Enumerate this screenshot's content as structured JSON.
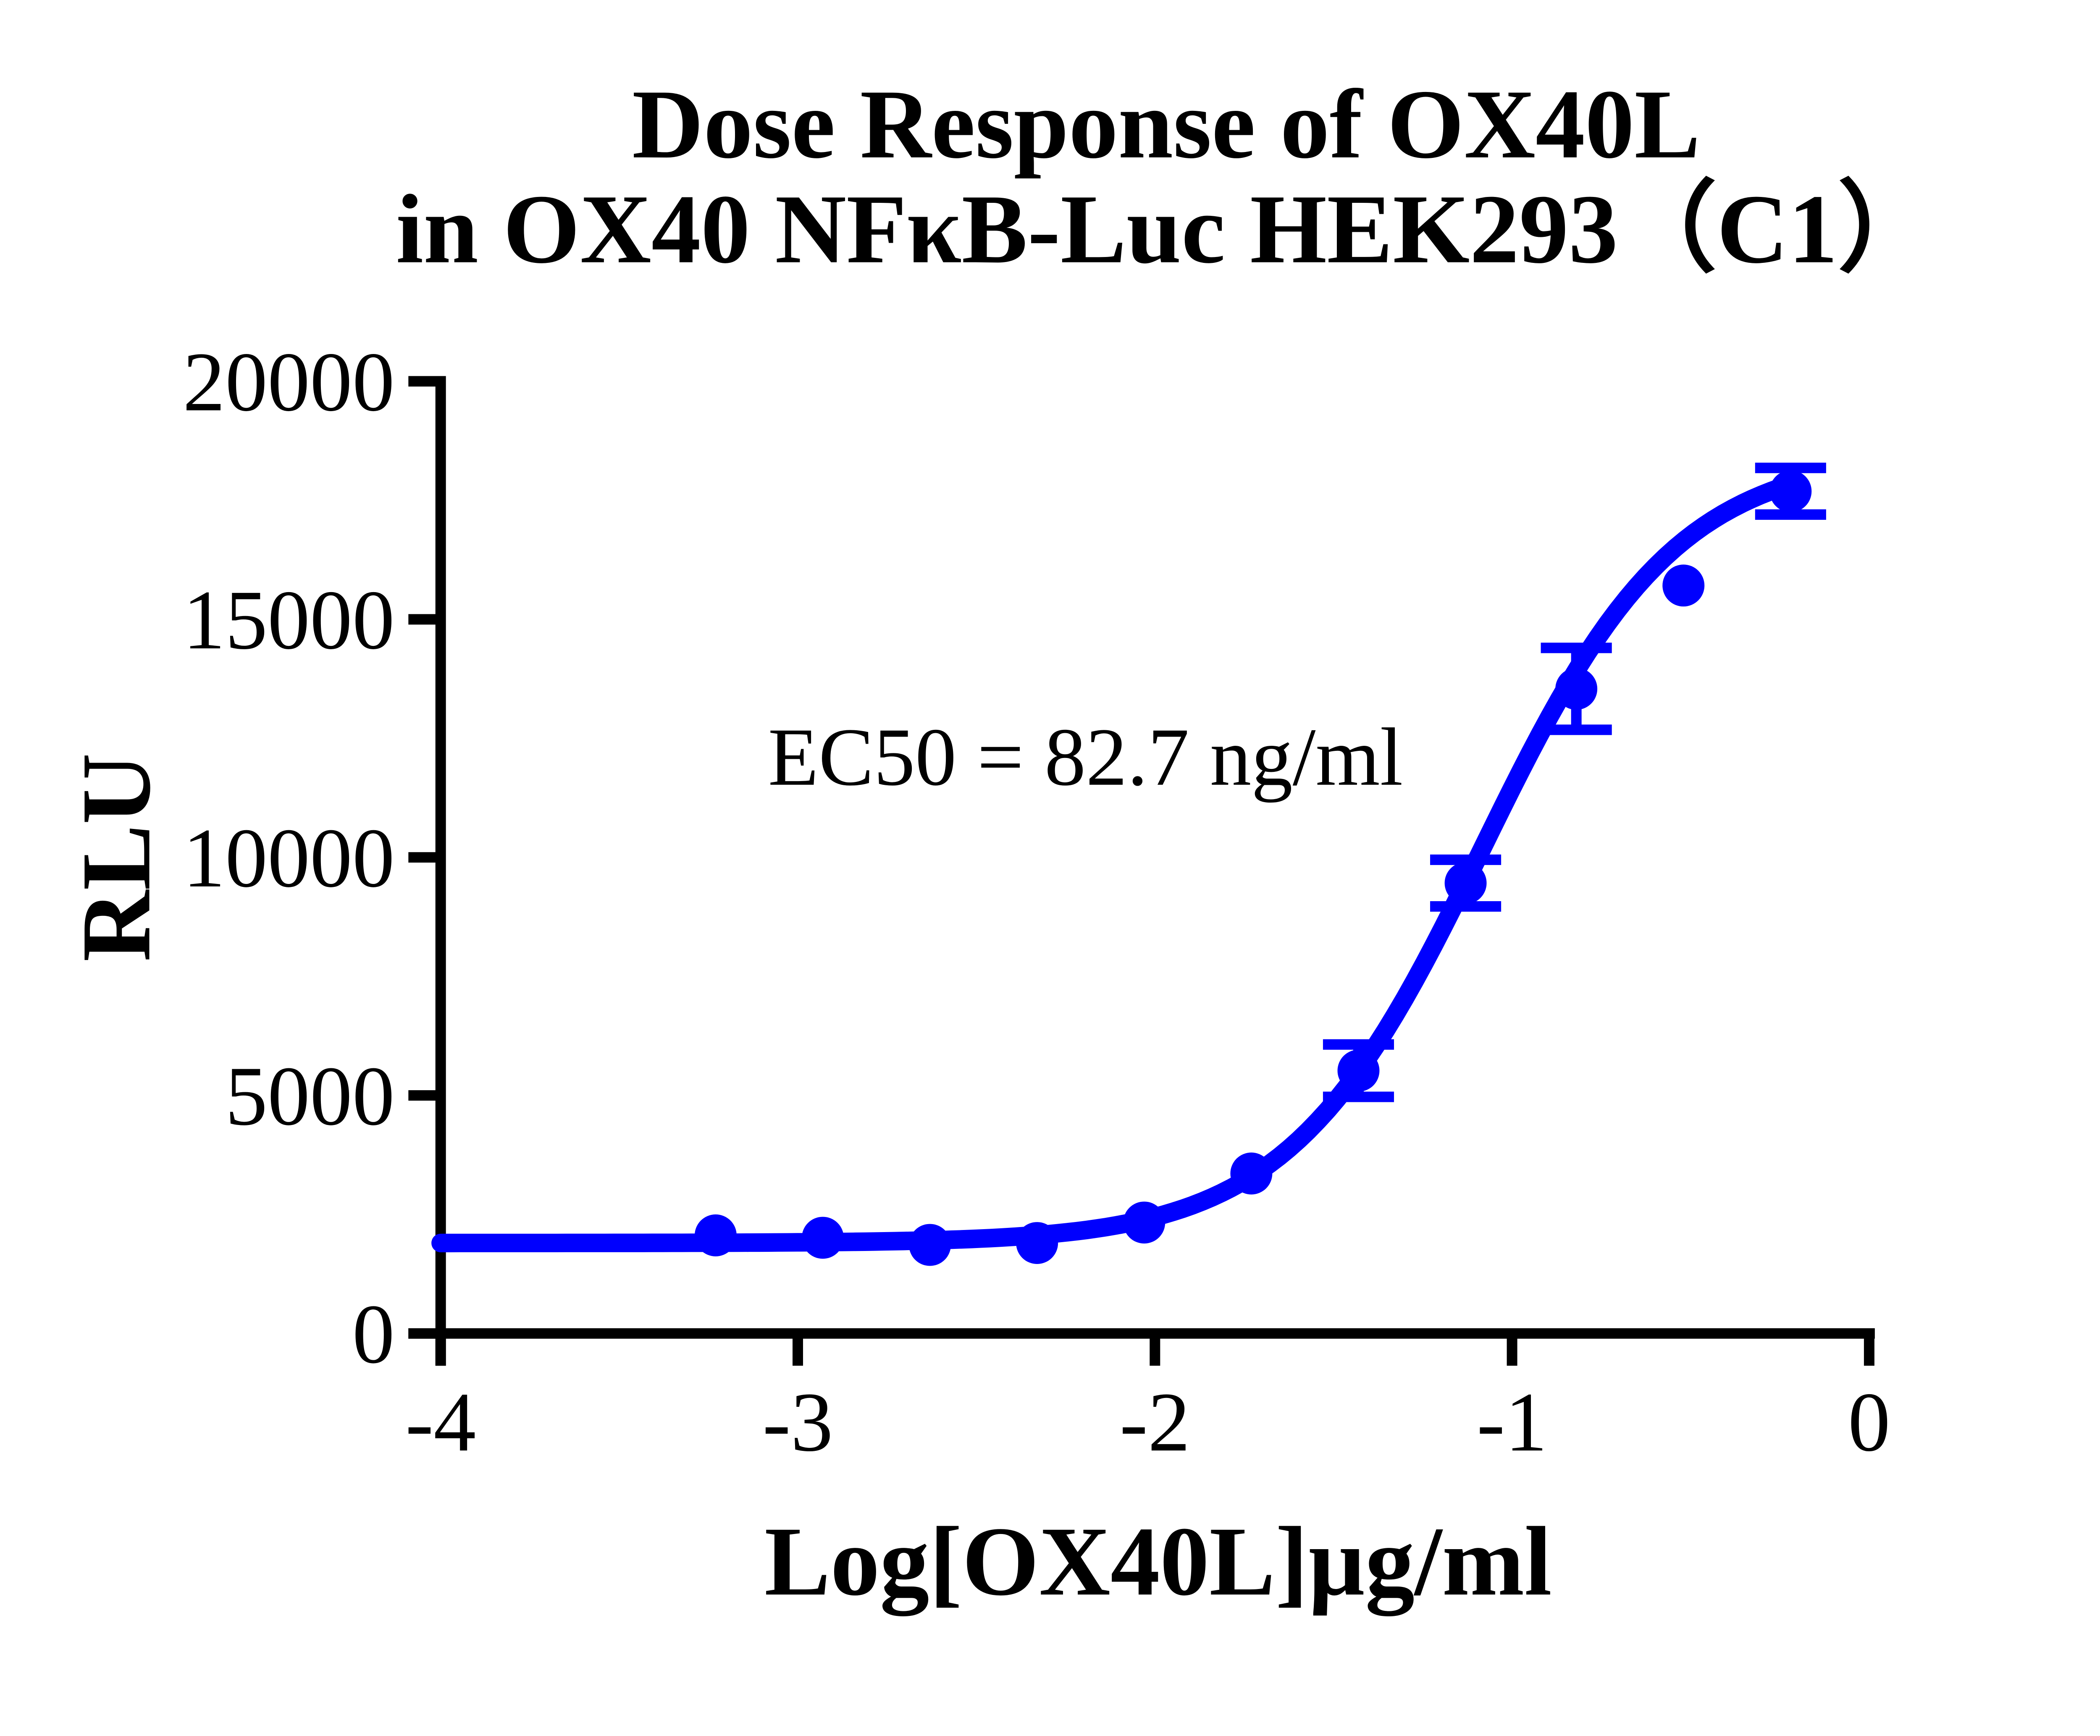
{
  "figure": {
    "background": "#ffffff",
    "accent_color": "#0000fe",
    "axis_color": "#000000"
  },
  "chart_data": {
    "type": "scatter",
    "title_line1": "Dose Response of OX40L",
    "title_line2": "in OX40 NFκB-Luc HEK293（C1）",
    "xlabel": "Log[OX40L]µg/ml",
    "ylabel": "RLU",
    "annotation": "EC50 = 82.7 ng/ml",
    "xlim": [
      -4,
      0.05
    ],
    "ylim": [
      0,
      20000
    ],
    "x_ticks": [
      -4,
      -3,
      -2,
      -1,
      0
    ],
    "y_ticks": [
      0,
      5000,
      10000,
      15000,
      20000
    ],
    "grid": false,
    "legend_position": "none",
    "series": [
      {
        "name": "OX40L",
        "color": "#0000fe",
        "marker": "circle",
        "x": [
          -3.23,
          -2.93,
          -2.63,
          -2.33,
          -2.03,
          -1.73,
          -1.43,
          -1.13,
          -0.82,
          -0.52,
          -0.22
        ],
        "y": [
          2060,
          2010,
          1860,
          1900,
          2330,
          3360,
          5520,
          9460,
          13540,
          15710,
          17690
        ],
        "sem": [
          0,
          0,
          0,
          0,
          0,
          0,
          550,
          490,
          860,
          0,
          490
        ]
      }
    ],
    "curve_fit": {
      "model": "4PL sigmoidal dose-response",
      "bottom": 1900,
      "top": 18500,
      "logEC50": -1.0825,
      "hill_slope": 1.6,
      "ec50_display_value": "82.7 ng/ml",
      "x_start": -4,
      "x_end": -0.22
    }
  }
}
